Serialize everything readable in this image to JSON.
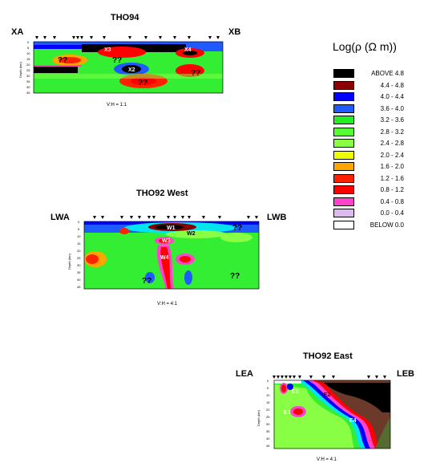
{
  "sections": {
    "tho94": {
      "title": "THO94",
      "left_end": "XA",
      "right_end": "XB",
      "ratio": "V:H = 1:1",
      "labels": [
        "X3",
        "X4",
        "X2",
        "??",
        "??",
        "??",
        "??"
      ],
      "depth_label": "Depth (km)",
      "depth_ticks": [
        "0",
        "5",
        "10",
        "15",
        "20",
        "25",
        "30",
        "35",
        "40",
        "45"
      ]
    },
    "tho92w": {
      "title": "THO92 West",
      "left_end": "LWA",
      "right_end": "LWB",
      "ratio": "V:H = 4:1",
      "labels": [
        "W1",
        "W2",
        "W3",
        "W4",
        "??",
        "??",
        "??"
      ],
      "depth_label": "Depth (km)",
      "depth_ticks": [
        "0",
        "5",
        "10",
        "15",
        "20",
        "25",
        "30",
        "35",
        "40",
        "45"
      ]
    },
    "tho92e": {
      "title": "THO92 East",
      "left_end": "LEA",
      "right_end": "LEB",
      "ratio": "V:H = 4:1",
      "labels": [
        "E1",
        "E2",
        "E3",
        "E4"
      ],
      "depth_label": "Depth (km)",
      "depth_ticks": [
        "0",
        "5",
        "10",
        "15",
        "20",
        "25",
        "30",
        "35",
        "40",
        "45"
      ]
    }
  },
  "legend": {
    "title": "Log(ρ (Ω m))",
    "rows": [
      {
        "range": "ABOVE   4.8",
        "color": "#000000"
      },
      {
        "range": "4.4 -  4.8",
        "color": "#8b0000"
      },
      {
        "range": "4.0 -  4.4",
        "color": "#0000ff"
      },
      {
        "range": "3.6 -  4.0",
        "color": "#1e5aff"
      },
      {
        "range": "3.2 -  3.6",
        "color": "#22ee22"
      },
      {
        "range": "2.8 -  3.2",
        "color": "#55ff33"
      },
      {
        "range": "2.4 -  2.8",
        "color": "#88ff44"
      },
      {
        "range": "2.0 -  2.4",
        "color": "#eeff00"
      },
      {
        "range": "1.6 -  2.0",
        "color": "#ffa500"
      },
      {
        "range": "1.2 -  1.6",
        "color": "#ff2200"
      },
      {
        "range": "0.8 -  1.2",
        "color": "#ff0000"
      },
      {
        "range": "0.4 -  0.8",
        "color": "#ff44cc"
      },
      {
        "range": "0.0 -  0.4",
        "color": "#ddbbee"
      },
      {
        "range": "BELOW   0.0",
        "color": "#ffffff"
      }
    ]
  }
}
